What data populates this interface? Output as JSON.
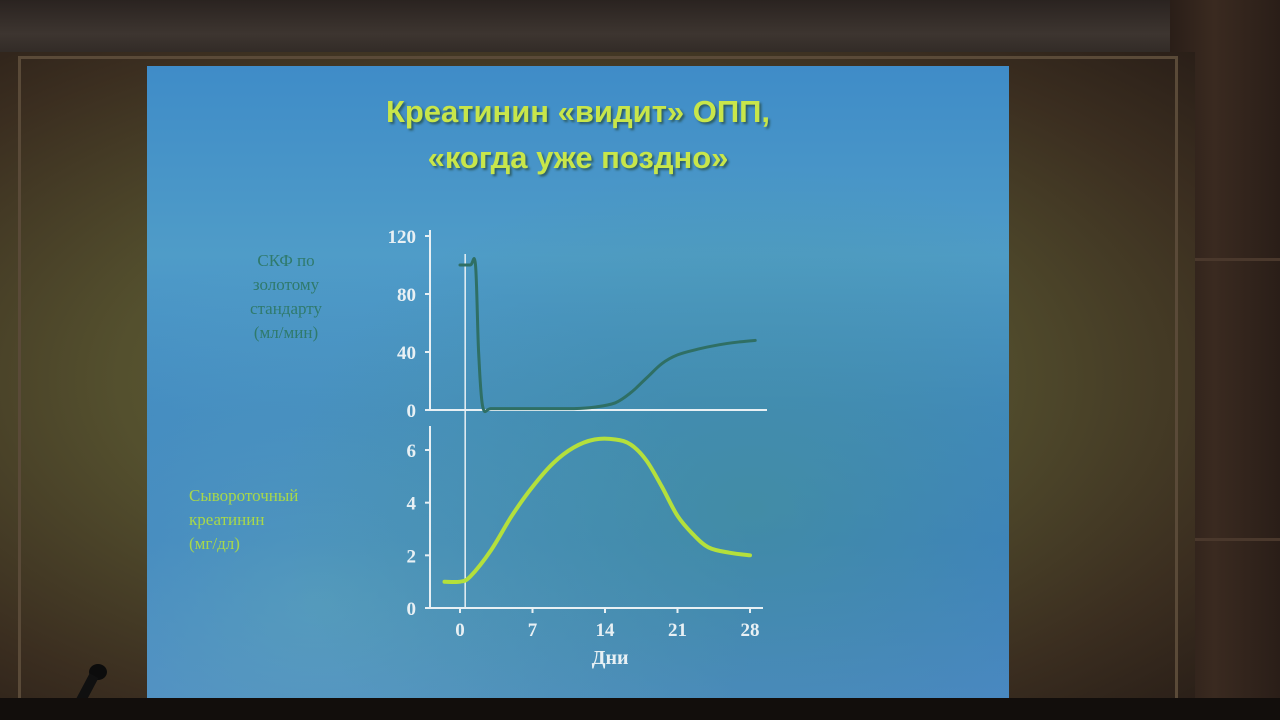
{
  "slide": {
    "title_line1": "Креатинин «видит» ОПП,",
    "title_line2": "«когда уже поздно»",
    "gfr_label": [
      "СКФ по",
      "золотому",
      "стандарту",
      "(мл/мин)"
    ],
    "creatinine_label": [
      "Сывороточный",
      "креатинин",
      "(мг/дл)"
    ]
  },
  "chart_data": [
    {
      "type": "line",
      "ylabel": "СКФ по золотому стандарту (мл/мин)",
      "ylim": [
        0,
        120
      ],
      "yticks": [
        0,
        40,
        80,
        120
      ],
      "xlim": [
        -2,
        29
      ],
      "grid": false,
      "colors": {
        "line": "#2f6f64",
        "axes": "#e8f0f4"
      },
      "series": [
        {
          "x": [
            0,
            1,
            1.5,
            1.8,
            2.2,
            3,
            5,
            8,
            11,
            13,
            15,
            16.5,
            18,
            19.5,
            21,
            23,
            25,
            27,
            28.5
          ],
          "y": [
            100,
            100,
            100,
            40,
            2,
            1,
            1,
            1,
            1,
            2,
            5,
            12,
            22,
            32,
            38,
            42,
            45,
            47,
            48
          ]
        }
      ]
    },
    {
      "type": "line",
      "ylabel": "Сывороточный креатинин (мг/дл)",
      "xlabel": "Дни",
      "ylim": [
        0,
        6.8
      ],
      "yticks": [
        0,
        2,
        4,
        6
      ],
      "xticks": [
        0,
        7,
        14,
        21,
        28
      ],
      "xlim": [
        -2,
        29
      ],
      "grid": false,
      "colors": {
        "line": "#b4e03c",
        "axes": "#e8f0f4"
      },
      "series": [
        {
          "x": [
            -1.5,
            0,
            1,
            3,
            5,
            7,
            9,
            11,
            13,
            15,
            16.5,
            18,
            19.5,
            21,
            22.5,
            24,
            26,
            28
          ],
          "y": [
            1,
            1,
            1.2,
            2.2,
            3.5,
            4.6,
            5.5,
            6.1,
            6.4,
            6.4,
            6.2,
            5.6,
            4.6,
            3.5,
            2.8,
            2.3,
            2.1,
            2.0
          ]
        }
      ]
    }
  ]
}
